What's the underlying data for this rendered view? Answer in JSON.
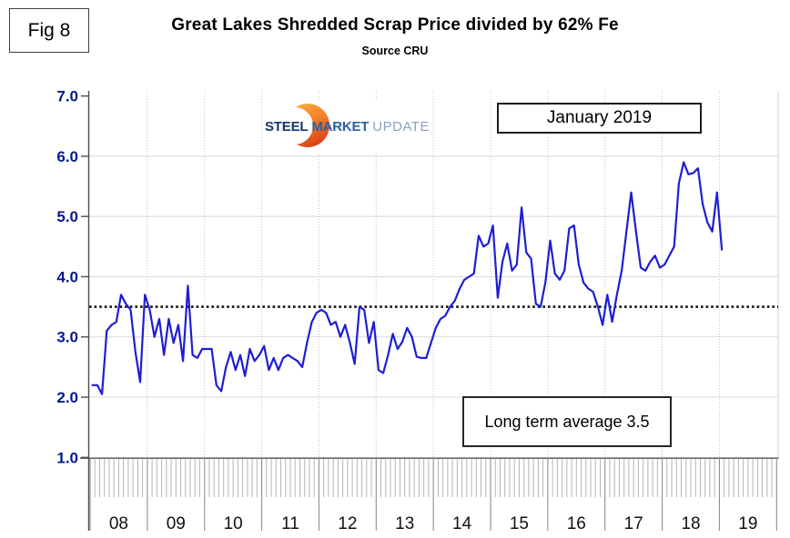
{
  "fig_label": "Fig 8",
  "logo": {
    "part1": "STEEL",
    "part2": "MARKET",
    "part3": "UPDATE"
  },
  "colors": {
    "line": "#1e1ed2",
    "y_axis_label": "#001a8c",
    "year_label": "#111111",
    "grid": "#d9d9d9",
    "year_gridline_dotted": "#c4c4c4",
    "axis": "#4d4d4d",
    "month_tick": "#b4b4b4",
    "year_separator": "#8f8f8f",
    "average_line": "#111111"
  },
  "chart_data": {
    "type": "line",
    "title": "Great Lakes Shredded Scrap Price divided by 62% Fe",
    "subtitle": "Source CRU",
    "x_interval": "monthly",
    "x_start": "2008-01",
    "x_end": "2019-01",
    "x_tick_labels": [
      "08",
      "09",
      "10",
      "11",
      "12",
      "13",
      "14",
      "15",
      "16",
      "17",
      "18",
      "19"
    ],
    "y_tick_labels": [
      "1.0",
      "2.0",
      "3.0",
      "4.0",
      "5.0",
      "6.0",
      "7.0"
    ],
    "ylim": [
      1.0,
      7.0
    ],
    "long_term_average": 3.5,
    "annotations": {
      "date_label": "January 2019",
      "average_label": "Long term average 3.5"
    },
    "grid": {
      "horizontal": "solid light gray lines at integer values 2.0-6.0",
      "vertical": "dotted light gray lines at year boundaries"
    },
    "legend": "none",
    "series": [
      {
        "name": "Great Lakes Shredded Scrap Price / 62% Fe",
        "values": [
          2.2,
          2.2,
          2.05,
          3.1,
          3.2,
          3.25,
          3.7,
          3.55,
          3.45,
          2.75,
          2.25,
          3.7,
          3.45,
          3.0,
          3.3,
          2.7,
          3.3,
          2.9,
          3.2,
          2.6,
          3.85,
          2.7,
          2.65,
          2.8,
          2.8,
          2.8,
          2.2,
          2.1,
          2.5,
          2.75,
          2.45,
          2.7,
          2.35,
          2.8,
          2.6,
          2.7,
          2.85,
          2.45,
          2.65,
          2.45,
          2.65,
          2.7,
          2.65,
          2.6,
          2.5,
          2.9,
          3.25,
          3.4,
          3.45,
          3.4,
          3.2,
          3.25,
          3.0,
          3.2,
          2.9,
          2.55,
          3.5,
          3.45,
          2.9,
          3.25,
          2.45,
          2.4,
          2.7,
          3.05,
          2.8,
          2.92,
          3.15,
          3.0,
          2.67,
          2.65,
          2.65,
          2.9,
          3.15,
          3.3,
          3.35,
          3.5,
          3.6,
          3.8,
          3.95,
          4.0,
          4.05,
          4.68,
          4.5,
          4.55,
          4.85,
          3.65,
          4.25,
          4.55,
          4.1,
          4.2,
          5.15,
          4.4,
          4.3,
          3.55,
          3.5,
          3.9,
          4.6,
          4.05,
          3.95,
          4.1,
          4.8,
          4.85,
          4.2,
          3.9,
          3.8,
          3.75,
          3.5,
          3.2,
          3.7,
          3.25,
          3.7,
          4.1,
          4.75,
          5.4,
          4.75,
          4.15,
          4.1,
          4.25,
          4.35,
          4.15,
          4.2,
          4.35,
          4.5,
          5.55,
          5.9,
          5.7,
          5.72,
          5.8,
          5.2,
          4.9,
          4.75,
          5.4,
          4.45
        ]
      }
    ]
  }
}
